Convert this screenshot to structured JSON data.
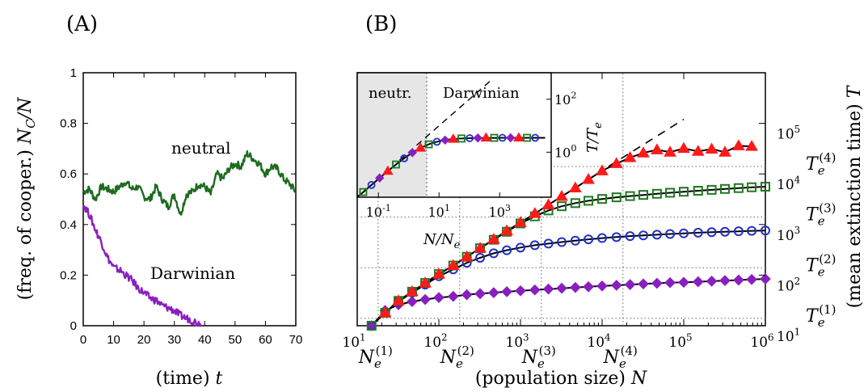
{
  "panels": {
    "a_label": "(A)",
    "b_label": "(B)"
  },
  "chart_data": [
    {
      "type": "line",
      "panel": "(A)",
      "xlabel": "(time) t",
      "ylabel": "(freq. of cooper.) N_C/N",
      "xlim": [
        0,
        70
      ],
      "ylim": [
        0,
        1
      ],
      "x_ticks": [
        "0",
        "10",
        "20",
        "30",
        "40",
        "50",
        "60",
        "70"
      ],
      "y_ticks": [
        "0",
        "0.2",
        "0.4",
        "0.6",
        "0.8",
        "1"
      ],
      "x_tick_values": [
        0,
        10,
        20,
        30,
        40,
        50,
        60,
        70
      ],
      "y_tick_values": [
        0,
        0.2,
        0.4,
        0.6,
        0.8,
        1
      ],
      "series": [
        {
          "name": "neutral",
          "color": "#1e6b1e",
          "x": [
            0,
            2,
            4,
            6,
            8,
            10,
            12,
            14,
            16,
            18,
            20,
            22,
            24,
            26,
            28,
            30,
            32,
            34,
            36,
            38,
            40,
            42,
            44,
            46,
            48,
            50,
            52,
            54,
            56,
            58,
            60,
            62,
            64,
            66,
            68,
            70
          ],
          "y": [
            0.53,
            0.54,
            0.5,
            0.55,
            0.54,
            0.53,
            0.55,
            0.57,
            0.54,
            0.55,
            0.51,
            0.5,
            0.55,
            0.5,
            0.47,
            0.52,
            0.44,
            0.52,
            0.53,
            0.56,
            0.55,
            0.52,
            0.6,
            0.58,
            0.62,
            0.64,
            0.63,
            0.68,
            0.66,
            0.64,
            0.6,
            0.63,
            0.62,
            0.58,
            0.56,
            0.53
          ]
        },
        {
          "name": "Darwinian",
          "color": "#8a1fc0",
          "x": [
            0,
            2,
            4,
            6,
            8,
            10,
            12,
            14,
            16,
            18,
            20,
            22,
            24,
            26,
            28,
            30,
            32,
            34,
            36,
            38,
            39
          ],
          "y": [
            0.48,
            0.44,
            0.38,
            0.33,
            0.27,
            0.23,
            0.22,
            0.2,
            0.18,
            0.15,
            0.13,
            0.11,
            0.1,
            0.08,
            0.07,
            0.06,
            0.04,
            0.03,
            0.02,
            0.01,
            0.0
          ]
        }
      ]
    },
    {
      "type": "scatter",
      "panel": "(B)",
      "xlabel": "(population size) N",
      "ylabel": "(mean extinction time) T",
      "x_scale": "log",
      "y_scale": "log",
      "xlim": [
        10,
        1000000
      ],
      "ylim": [
        10,
        1000000
      ],
      "x_ticks": [
        "10^1",
        "10^2",
        "10^3",
        "10^4",
        "10^5",
        "10^6"
      ],
      "y_ticks": [
        "10^1",
        "10^2",
        "10^3",
        "10^4",
        "10^5"
      ],
      "Ne_labels": [
        "N_e^(1)",
        "N_e^(2)",
        "N_e^(3)",
        "N_e^(4)"
      ],
      "Te_labels": [
        "T_e^(1)",
        "T_e^(2)",
        "T_e^(3)",
        "T_e^(4)"
      ],
      "Ne_values": [
        18,
        180,
        1800,
        18000
      ],
      "Te_values": [
        14,
        140,
        1400,
        14000
      ],
      "series": [
        {
          "name": "T_e^(1)",
          "marker": "diamond",
          "color": "#8a1fc0",
          "fill": "#8a1fc0",
          "x": [
            15,
            22,
            32,
            47,
            68,
            100,
            150,
            220,
            320,
            470,
            680,
            1000,
            1500,
            2200,
            3200,
            4700,
            6800,
            10000,
            15000,
            22000,
            32000,
            47000,
            68000,
            100000,
            150000,
            220000,
            320000,
            470000,
            680000,
            1000000
          ],
          "y": [
            10,
            20,
            26,
            30,
            33,
            36,
            38,
            41,
            43,
            45,
            47,
            49,
            51,
            53,
            55,
            57,
            59,
            61,
            63,
            65,
            67,
            69,
            71,
            72,
            74,
            76,
            78,
            80,
            82,
            84
          ]
        },
        {
          "name": "T_e^(2)",
          "marker": "circle",
          "color": "#1f2fc8",
          "fill": "none",
          "x": [
            15,
            22,
            32,
            47,
            68,
            100,
            150,
            220,
            320,
            470,
            680,
            1000,
            1500,
            2200,
            3200,
            4700,
            6800,
            10000,
            15000,
            22000,
            32000,
            47000,
            68000,
            100000,
            150000,
            220000,
            320000,
            470000,
            680000,
            1000000
          ],
          "y": [
            10,
            18,
            30,
            45,
            65,
            95,
            130,
            175,
            220,
            270,
            310,
            350,
            390,
            420,
            450,
            480,
            510,
            540,
            565,
            590,
            610,
            630,
            650,
            670,
            690,
            705,
            720,
            735,
            750,
            760
          ]
        },
        {
          "name": "T_e^(3)",
          "marker": "square",
          "color": "#1e7a1e",
          "fill": "none",
          "x": [
            15,
            22,
            32,
            47,
            68,
            100,
            150,
            220,
            320,
            470,
            680,
            1000,
            1500,
            2200,
            3200,
            4700,
            6800,
            10000,
            15000,
            22000,
            32000,
            47000,
            68000,
            100000,
            150000,
            220000,
            320000,
            470000,
            680000,
            1000000
          ],
          "y": [
            10,
            18,
            31,
            47,
            70,
            105,
            155,
            230,
            340,
            500,
            720,
            1050,
            1450,
            1900,
            2300,
            2650,
            2950,
            3200,
            3450,
            3650,
            3850,
            4050,
            4250,
            4450,
            4650,
            4850,
            5050,
            5250,
            5450,
            5600
          ]
        },
        {
          "name": "T_e^(4)",
          "marker": "triangle",
          "color": "#ff1a1a",
          "fill": "#ff1a1a",
          "x": [
            22,
            32,
            47,
            68,
            100,
            150,
            220,
            320,
            470,
            680,
            1000,
            1500,
            2200,
            3200,
            4700,
            6800,
            10000,
            15000,
            22000,
            32000,
            47000,
            68000,
            100000,
            150000,
            220000,
            320000,
            470000,
            680000
          ],
          "y": [
            18,
            31,
            47,
            70,
            105,
            155,
            230,
            340,
            510,
            750,
            1100,
            1650,
            2450,
            3600,
            5300,
            7800,
            11500,
            16000,
            21000,
            26000,
            30000,
            27000,
            32000,
            28000,
            31000,
            27000,
            36000,
            35000
          ]
        }
      ],
      "fit_curves": "solid black lines through each series; dashed black line T~N continuing from the T_e^(4) series",
      "inset": {
        "xlabel": "N/N_e",
        "ylabel": "T/T_e",
        "x_ticks": [
          "10^-1",
          "10^1",
          "10^3"
        ],
        "y_ticks": [
          "10^0",
          "10^2"
        ],
        "regions": [
          "neutr.",
          "Darwinian"
        ],
        "boundary_x": 1,
        "xlim": [
          0.02,
          50000
        ],
        "ylim": [
          0.02,
          1000
        ]
      }
    }
  ]
}
